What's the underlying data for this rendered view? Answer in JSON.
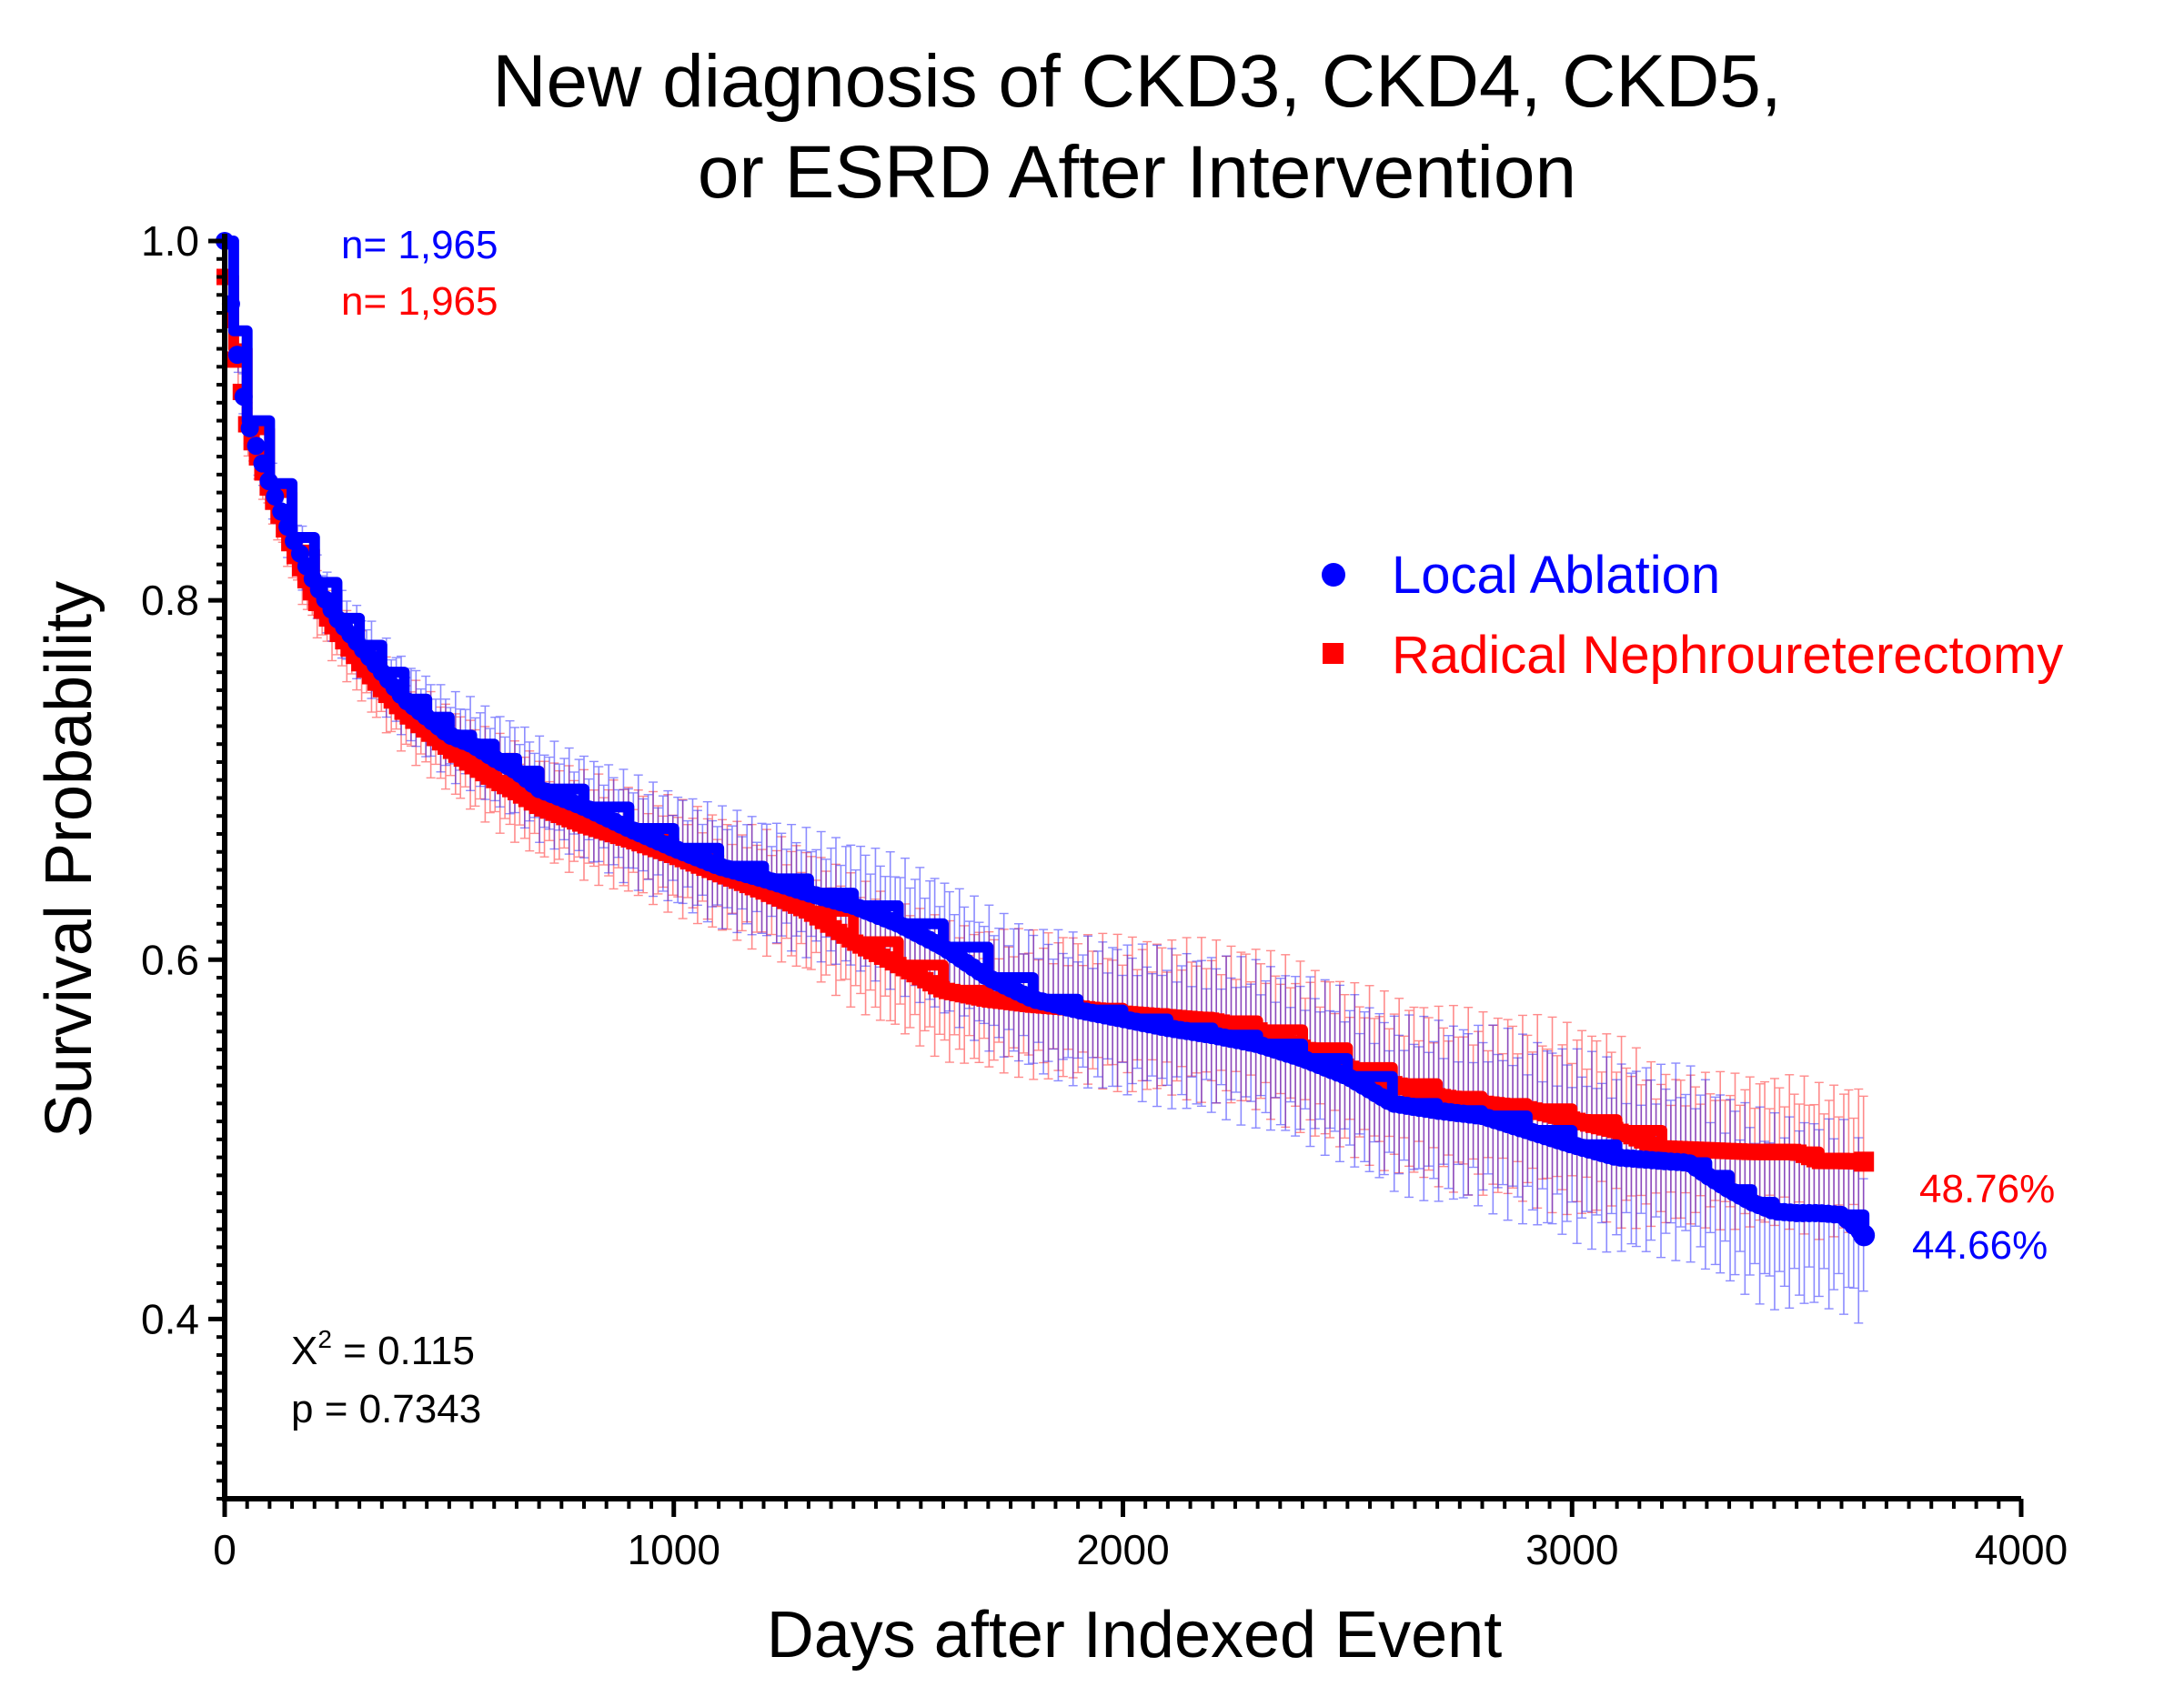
{
  "chart_data": {
    "type": "line",
    "subtype": "kaplan-meier",
    "title_lines": [
      "New diagnosis of CKD3, CKD4, CKD5,",
      "or ESRD After Intervention"
    ],
    "xlabel": "Days after Indexed Event",
    "ylabel": "Survival Probability",
    "xlim": [
      0,
      4000
    ],
    "ylim": [
      0.3,
      1.0
    ],
    "xticks": [
      0,
      1000,
      2000,
      3000,
      4000
    ],
    "xtick_labels": [
      "0",
      "1000",
      "2000",
      "3000",
      "4000"
    ],
    "yticks": [
      0.4,
      0.6,
      0.8,
      1.0
    ],
    "ytick_labels": [
      "0.4",
      "0.6",
      "0.8",
      "1.0"
    ],
    "grid": false,
    "legend_position": "upper-right",
    "series": [
      {
        "name": "Local Ablation",
        "color": "#0000ff",
        "marker": "circle",
        "n_label": "n= 1,965",
        "end_label": "44.66%",
        "x": [
          0,
          20,
          50,
          100,
          150,
          200,
          250,
          300,
          350,
          400,
          450,
          500,
          550,
          600,
          650,
          700,
          800,
          900,
          1000,
          1100,
          1200,
          1300,
          1400,
          1500,
          1600,
          1700,
          1800,
          1900,
          2000,
          2100,
          2200,
          2300,
          2400,
          2500,
          2600,
          2700,
          2800,
          2900,
          3000,
          3100,
          3200,
          3260,
          3300,
          3350,
          3400,
          3450,
          3500,
          3550,
          3600,
          3650
        ],
        "y": [
          1.0,
          0.95,
          0.9,
          0.865,
          0.835,
          0.81,
          0.79,
          0.775,
          0.76,
          0.745,
          0.735,
          0.725,
          0.72,
          0.712,
          0.705,
          0.695,
          0.685,
          0.673,
          0.662,
          0.652,
          0.645,
          0.637,
          0.63,
          0.62,
          0.607,
          0.59,
          0.578,
          0.572,
          0.567,
          0.562,
          0.558,
          0.553,
          0.545,
          0.535,
          0.52,
          0.516,
          0.513,
          0.505,
          0.497,
          0.49,
          0.488,
          0.487,
          0.48,
          0.472,
          0.465,
          0.46,
          0.459,
          0.459,
          0.458,
          0.4466
        ],
        "ci_width": [
          0.0,
          0.01,
          0.012,
          0.014,
          0.016,
          0.017,
          0.018,
          0.019,
          0.02,
          0.021,
          0.022,
          0.023,
          0.024,
          0.025,
          0.026,
          0.027,
          0.028,
          0.029,
          0.03,
          0.031,
          0.032,
          0.033,
          0.034,
          0.035,
          0.036,
          0.037,
          0.038,
          0.039,
          0.04,
          0.041,
          0.042,
          0.043,
          0.044,
          0.045,
          0.046,
          0.047,
          0.048,
          0.049,
          0.05,
          0.05,
          0.05,
          0.05,
          0.05,
          0.05,
          0.05,
          0.05,
          0.05,
          0.05,
          0.05,
          0.046
        ]
      },
      {
        "name": "Radical Nephroureterectomy",
        "color": "#ff0000",
        "marker": "square",
        "n_label": "n= 1,965",
        "end_label": "48.76%",
        "x": [
          0,
          20,
          50,
          100,
          150,
          200,
          250,
          300,
          350,
          400,
          450,
          500,
          550,
          600,
          650,
          700,
          800,
          900,
          1000,
          1100,
          1200,
          1300,
          1400,
          1500,
          1600,
          1700,
          1800,
          1900,
          2000,
          2100,
          2200,
          2300,
          2400,
          2500,
          2600,
          2700,
          2800,
          2900,
          3000,
          3100,
          3200,
          3300,
          3400,
          3500,
          3550,
          3600,
          3650
        ],
        "y": [
          0.98,
          0.94,
          0.895,
          0.86,
          0.828,
          0.8,
          0.782,
          0.765,
          0.75,
          0.737,
          0.727,
          0.717,
          0.708,
          0.7,
          0.693,
          0.685,
          0.675,
          0.667,
          0.658,
          0.648,
          0.638,
          0.627,
          0.61,
          0.597,
          0.583,
          0.578,
          0.575,
          0.573,
          0.57,
          0.568,
          0.566,
          0.561,
          0.551,
          0.54,
          0.531,
          0.524,
          0.52,
          0.517,
          0.511,
          0.505,
          0.495,
          0.494,
          0.493,
          0.493,
          0.488,
          0.488,
          0.4876
        ],
        "ci_width": [
          0.0,
          0.01,
          0.012,
          0.014,
          0.016,
          0.017,
          0.018,
          0.019,
          0.02,
          0.021,
          0.022,
          0.023,
          0.024,
          0.025,
          0.026,
          0.027,
          0.028,
          0.029,
          0.03,
          0.031,
          0.032,
          0.033,
          0.034,
          0.035,
          0.036,
          0.037,
          0.038,
          0.039,
          0.04,
          0.041,
          0.042,
          0.043,
          0.044,
          0.045,
          0.046,
          0.047,
          0.048,
          0.049,
          0.05,
          0.05,
          0.04,
          0.04,
          0.04,
          0.04,
          0.04,
          0.04,
          0.04
        ]
      }
    ],
    "stats": {
      "chi_label": "X",
      "chi_sup": "2",
      "chi_value": " = 0.115",
      "p_text": "p = 0.7343"
    }
  }
}
